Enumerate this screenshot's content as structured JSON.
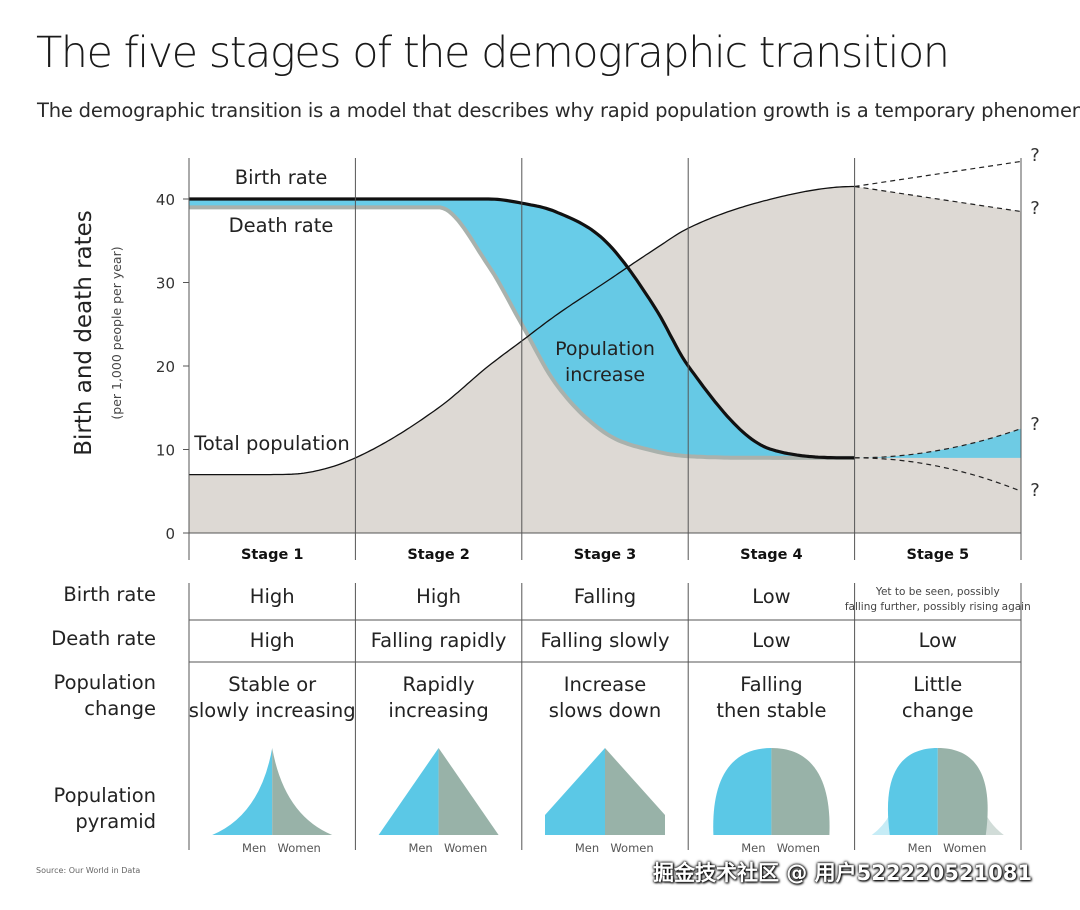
{
  "title": "The five stages of the demographic transition",
  "subtitle": "The demographic transition is a model that describes why rapid population growth is a temporary phenomenon.",
  "source": "Source: Our World in Data",
  "watermark": "掘金技术社区 @ 用户5222205210​81",
  "colors": {
    "increase": "#5bc8e6",
    "population_area": "#ddd9d4",
    "men": "#5bc8e6",
    "women": "#98b2a8",
    "lines": "#111111"
  },
  "chart_data": {
    "type": "area",
    "ylabel": "Birth and death rates",
    "ylabel_sub": "(per 1,000 people per year)",
    "ylim": [
      0,
      45
    ],
    "yticks": [
      0,
      10,
      20,
      30,
      40
    ],
    "stages": [
      "Stage 1",
      "Stage 2",
      "Stage 3",
      "Stage 4",
      "Stage 5"
    ],
    "x": [
      0,
      0.3,
      0.5,
      0.7,
      1.0,
      1.5,
      1.8,
      2.0,
      2.2,
      2.5,
      2.8,
      3.0,
      3.5,
      4.0,
      4.5,
      5.0
    ],
    "series": [
      {
        "name": "Birth rate",
        "values": [
          40,
          40,
          40,
          40,
          40,
          40,
          40,
          39.5,
          38.5,
          35,
          27,
          20,
          10,
          9,
          9,
          9
        ]
      },
      {
        "name": "Death rate",
        "values": [
          39,
          39,
          39,
          39,
          39,
          39,
          32,
          25,
          18,
          12,
          9.8,
          9.2,
          9,
          9,
          9,
          9
        ]
      },
      {
        "name": "Total population",
        "values": [
          7,
          7,
          7,
          7.2,
          9,
          15,
          20,
          23,
          26,
          30,
          34,
          36.5,
          40,
          41.5,
          41,
          40
        ]
      }
    ],
    "stage5_projection": {
      "birth_rate": [
        9,
        12.5
      ],
      "death_rate": [
        9,
        5
      ],
      "population": [
        41.8,
        44.5,
        38.5
      ]
    },
    "annotations": [
      "Population increase",
      "?"
    ]
  },
  "table": {
    "rows": [
      {
        "label": "Birth rate",
        "cells": [
          "High",
          "High",
          "Falling",
          "Low",
          "Yet to be seen, possibly falling further, possibly rising again"
        ]
      },
      {
        "label": "Death rate",
        "cells": [
          "High",
          "Falling rapidly",
          "Falling slowly",
          "Low",
          "Low"
        ]
      },
      {
        "label": "Population change",
        "cells": [
          "Stable or slowly increasing",
          "Rapidly increasing",
          "Increase slows down",
          "Falling then stable",
          "Little change"
        ]
      },
      {
        "label": "Population pyramid",
        "cells": [
          "",
          "",
          "",
          "",
          ""
        ]
      }
    ],
    "pyramid_men": "Men",
    "pyramid_women": "Women",
    "pyramid_shapes": [
      "concave",
      "triangle",
      "trapezoid",
      "dome",
      "dome-flared"
    ]
  }
}
